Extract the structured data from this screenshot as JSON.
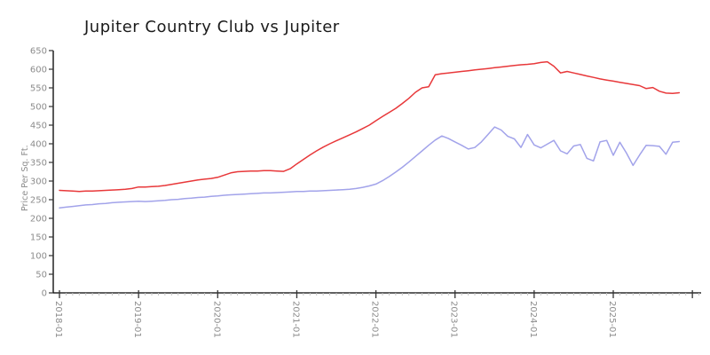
{
  "title": "Jupiter Country Club vs Jupiter",
  "axes": {
    "ylabel": "Price Per Sq. Ft.",
    "y_ticks": [
      0,
      50,
      100,
      150,
      200,
      250,
      300,
      350,
      400,
      450,
      500,
      550,
      600,
      650
    ],
    "x_tick_labels": [
      "2018-01",
      "2019-01",
      "2020-01",
      "2021-01",
      "2022-01",
      "2023-01",
      "2024-01",
      "2025-01"
    ]
  },
  "colors": {
    "series_club": "#e8383a",
    "series_city": "#a2a3ea",
    "spine": "#000000",
    "major_tick": "#333333",
    "minor_tick": "#c2c2c2",
    "tick_label": "#8c8c8c",
    "title_text": "#1b1b1b"
  },
  "chart_data": {
    "type": "line",
    "title": "Jupiter Country Club vs Jupiter",
    "xlabel": "",
    "ylabel": "Price Per Sq. Ft.",
    "ylim": [
      0,
      650
    ],
    "grid": false,
    "legend": "none",
    "x": [
      "2018-01",
      "2018-02",
      "2018-03",
      "2018-04",
      "2018-05",
      "2018-06",
      "2018-07",
      "2018-08",
      "2018-09",
      "2018-10",
      "2018-11",
      "2018-12",
      "2019-01",
      "2019-02",
      "2019-03",
      "2019-04",
      "2019-05",
      "2019-06",
      "2019-07",
      "2019-08",
      "2019-09",
      "2019-10",
      "2019-11",
      "2019-12",
      "2020-01",
      "2020-02",
      "2020-03",
      "2020-04",
      "2020-05",
      "2020-06",
      "2020-07",
      "2020-08",
      "2020-09",
      "2020-10",
      "2020-11",
      "2020-12",
      "2021-01",
      "2021-02",
      "2021-03",
      "2021-04",
      "2021-05",
      "2021-06",
      "2021-07",
      "2021-08",
      "2021-09",
      "2021-10",
      "2021-11",
      "2021-12",
      "2022-01",
      "2022-02",
      "2022-03",
      "2022-04",
      "2022-05",
      "2022-06",
      "2022-07",
      "2022-08",
      "2022-09",
      "2022-10",
      "2022-11",
      "2022-12",
      "2023-01",
      "2023-02",
      "2023-03",
      "2023-04",
      "2023-05",
      "2023-06",
      "2023-07",
      "2023-08",
      "2023-09",
      "2023-10",
      "2023-11",
      "2023-12",
      "2024-01",
      "2024-02",
      "2024-03",
      "2024-04",
      "2024-05",
      "2024-06",
      "2024-07",
      "2024-08",
      "2024-09",
      "2024-10",
      "2024-11",
      "2024-12",
      "2025-01",
      "2025-02",
      "2025-03",
      "2025-04",
      "2025-05",
      "2025-06",
      "2025-07",
      "2025-08",
      "2025-09",
      "2025-10",
      "2025-11"
    ],
    "series": [
      {
        "name": "Jupiter Country Club",
        "color": "#e8383a",
        "values": [
          275,
          274,
          273,
          272,
          273,
          273,
          274,
          275,
          276,
          277,
          278,
          280,
          284,
          284,
          285,
          286,
          288,
          291,
          294,
          297,
          300,
          303,
          305,
          307,
          310,
          316,
          322,
          325,
          326,
          327,
          327,
          328,
          328,
          327,
          326,
          333,
          346,
          358,
          370,
          381,
          391,
          400,
          408,
          416,
          424,
          432,
          441,
          450,
          462,
          473,
          484,
          495,
          508,
          522,
          538,
          550,
          553,
          585,
          588,
          590,
          592,
          594,
          596,
          598,
          600,
          602,
          604,
          606,
          608,
          610,
          612,
          613,
          615,
          618,
          620,
          608,
          590,
          594,
          590,
          586,
          582,
          578,
          574,
          571,
          568,
          565,
          562,
          559,
          556,
          548,
          551,
          541,
          536,
          535,
          537
        ]
      },
      {
        "name": "Jupiter",
        "color": "#a2a3ea",
        "values": [
          228,
          230,
          232,
          234,
          236,
          237,
          239,
          240,
          242,
          243,
          244,
          245,
          246,
          245,
          246,
          247,
          248,
          250,
          251,
          253,
          254,
          256,
          257,
          259,
          260,
          262,
          263,
          264,
          265,
          266,
          267,
          268,
          268,
          269,
          270,
          271,
          272,
          272,
          273,
          273,
          274,
          275,
          276,
          277,
          278,
          280,
          283,
          287,
          292,
          301,
          312,
          324,
          337,
          351,
          366,
          381,
          396,
          410,
          421,
          414,
          405,
          396,
          386,
          390,
          405,
          425,
          445,
          437,
          420,
          413,
          390,
          425,
          397,
          389,
          399,
          409,
          381,
          373,
          394,
          398,
          361,
          354,
          405,
          409,
          369,
          404,
          375,
          342,
          370,
          396,
          395,
          393,
          372,
          404,
          406
        ]
      }
    ]
  }
}
